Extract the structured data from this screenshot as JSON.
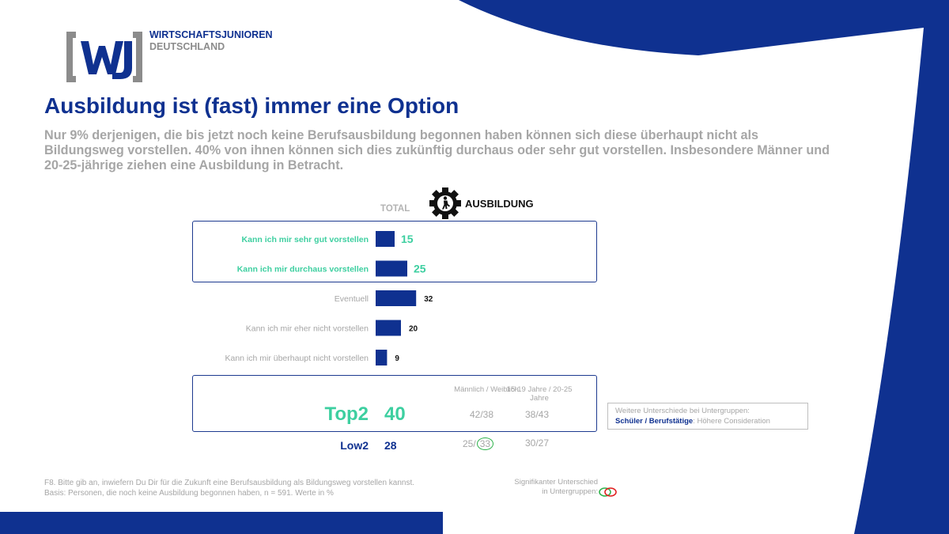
{
  "org": {
    "line1": "WIRTSCHAFTSJUNIOREN",
    "line2": "DEUTSCHLAND"
  },
  "title": "Ausbildung ist (fast) immer eine Option",
  "subtitle": "Nur 9% derjenigen, die bis jetzt noch keine Berufsausbildung begonnen haben können sich diese überhaupt nicht als Bildungsweg vorstellen. 40% von ihnen können sich dies zukünftig durchaus oder sehr gut vorstellen. Insbesondere Männer und 20-25-jährige ziehen eine Ausbildung in Betracht.",
  "chart_data": {
    "type": "bar",
    "orientation": "horizontal",
    "column_header": "TOTAL",
    "topic_label": "AUSBILDUNG",
    "categories": [
      "Kann ich mir sehr gut vorstellen",
      "Kann ich mir durchaus vorstellen",
      "Eventuell",
      "Kann ich mir eher nicht vorstellen",
      "Kann ich mir überhaupt nicht vorstellen"
    ],
    "values": [
      15,
      25,
      32,
      20,
      9
    ],
    "highlighted": [
      true,
      true,
      false,
      false,
      false
    ],
    "colors": {
      "bar": "#0f3190",
      "highlight_text": "#3dcfa0",
      "muted_text": "#a6a6a6",
      "value_text": "#111111"
    },
    "summary": {
      "top2": {
        "label": "Top2",
        "value": "40",
        "gender": "42/38",
        "age": "38/43"
      },
      "low2": {
        "label": "Low2",
        "value": "28",
        "gender_male": "25",
        "gender_female": "33",
        "age": "30/27"
      }
    },
    "subgroup_headers": {
      "gender": "Männlich / Weiblich",
      "age": "15-19 Jahre / 20-25 Jahre"
    }
  },
  "note": {
    "line1": "Weitere Unterschiede bei Untergruppen:",
    "strong": "Schüler / Berufstätige",
    "rest": ": Höhere Consideration"
  },
  "footnote": {
    "line1": "F8. Bitte gib an, inwiefern Du Dir für die Zukunft eine Berufsausbildung als Bildungsweg vorstellen kannst.",
    "line2": "Basis: Personen, die noch keine Ausbildung begonnen haben, n = 591. Werte in %"
  },
  "legend": {
    "line1": "Signifikanter Unterschied",
    "line2": "in Untergruppen:"
  },
  "theme": {
    "brand_blue": "#0f3190",
    "brand_gray": "#8c8c8c",
    "sig_green": "#2fb24c",
    "sig_red": "#e02020"
  }
}
